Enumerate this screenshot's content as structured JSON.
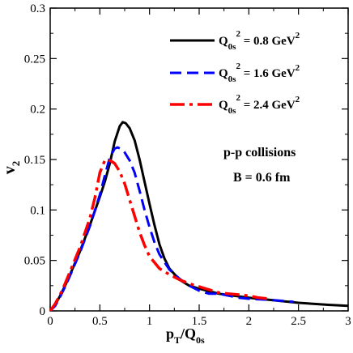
{
  "chart_data": {
    "type": "line",
    "xlim": [
      0,
      3
    ],
    "ylim": [
      0,
      0.3
    ],
    "x_ticks": [
      0,
      0.5,
      1,
      1.5,
      2,
      2.5,
      3
    ],
    "x_tick_labels": [
      "0",
      "0.5",
      "1",
      "1.5",
      "2",
      "2.5",
      "3"
    ],
    "y_ticks": [
      0,
      0.05,
      0.1,
      0.15,
      0.2,
      0.25,
      0.3
    ],
    "y_tick_labels": [
      "0",
      "0.05",
      "0.1",
      "0.15",
      "0.2",
      "0.25",
      "0.3"
    ],
    "xlabel": {
      "main": "p",
      "sub1": "T",
      "mid": "/Q",
      "sub2": "0s"
    },
    "ylabel": {
      "main": "v",
      "sub": "2"
    },
    "legend_placement": "top-right",
    "annotations": [
      "p-p collisions",
      "B = 0.6 fm"
    ],
    "series": [
      {
        "legend": {
          "q": "Q",
          "sub": "0s",
          "sup": "2",
          "value": " = 0.8 GeV",
          "unit_sup": "2"
        },
        "color": "#000000",
        "dash": "solid",
        "points": [
          [
            0,
            0
          ],
          [
            0.05,
            0.006
          ],
          [
            0.1,
            0.015
          ],
          [
            0.15,
            0.025
          ],
          [
            0.2,
            0.036
          ],
          [
            0.3,
            0.059
          ],
          [
            0.4,
            0.085
          ],
          [
            0.5,
            0.113
          ],
          [
            0.55,
            0.128
          ],
          [
            0.6,
            0.146
          ],
          [
            0.65,
            0.168
          ],
          [
            0.7,
            0.183
          ],
          [
            0.73,
            0.187
          ],
          [
            0.76,
            0.186
          ],
          [
            0.8,
            0.181
          ],
          [
            0.85,
            0.169
          ],
          [
            0.9,
            0.15
          ],
          [
            0.95,
            0.128
          ],
          [
            1.0,
            0.106
          ],
          [
            1.05,
            0.085
          ],
          [
            1.1,
            0.066
          ],
          [
            1.15,
            0.052
          ],
          [
            1.2,
            0.042
          ],
          [
            1.3,
            0.031
          ],
          [
            1.4,
            0.025
          ],
          [
            1.5,
            0.022
          ],
          [
            1.7,
            0.017
          ],
          [
            2.0,
            0.013
          ],
          [
            2.2,
            0.011
          ],
          [
            2.5,
            0.008
          ],
          [
            2.8,
            0.006
          ],
          [
            3.0,
            0.005
          ]
        ]
      },
      {
        "legend": {
          "q": "Q",
          "sub": "0s",
          "sup": "2",
          "value": " = 1.6 GeV",
          "unit_sup": "2"
        },
        "color": "#0000ff",
        "dash": "dashed",
        "points": [
          [
            0,
            0
          ],
          [
            0.05,
            0.005
          ],
          [
            0.1,
            0.014
          ],
          [
            0.15,
            0.024
          ],
          [
            0.2,
            0.035
          ],
          [
            0.3,
            0.058
          ],
          [
            0.4,
            0.084
          ],
          [
            0.5,
            0.115
          ],
          [
            0.55,
            0.134
          ],
          [
            0.6,
            0.152
          ],
          [
            0.65,
            0.161
          ],
          [
            0.68,
            0.162
          ],
          [
            0.72,
            0.16
          ],
          [
            0.75,
            0.157
          ],
          [
            0.8,
            0.149
          ],
          [
            0.85,
            0.137
          ],
          [
            0.9,
            0.119
          ],
          [
            0.95,
            0.1
          ],
          [
            1.0,
            0.083
          ],
          [
            1.05,
            0.068
          ],
          [
            1.1,
            0.056
          ],
          [
            1.2,
            0.041
          ],
          [
            1.3,
            0.032
          ],
          [
            1.4,
            0.025
          ],
          [
            1.5,
            0.02
          ],
          [
            1.6,
            0.017
          ],
          [
            1.7,
            0.017
          ],
          [
            1.8,
            0.015
          ],
          [
            1.9,
            0.013
          ],
          [
            2.0,
            0.012
          ],
          [
            2.2,
            0.011
          ],
          [
            2.45,
            0.009
          ]
        ]
      },
      {
        "legend": {
          "q": "Q",
          "sub": "0s",
          "sup": "2",
          "value": " = 2.4 GeV",
          "unit_sup": "2"
        },
        "color": "#ff0000",
        "dash": "dashdot",
        "points": [
          [
            0,
            0
          ],
          [
            0.05,
            0.007
          ],
          [
            0.1,
            0.016
          ],
          [
            0.15,
            0.027
          ],
          [
            0.2,
            0.039
          ],
          [
            0.3,
            0.063
          ],
          [
            0.4,
            0.092
          ],
          [
            0.45,
            0.112
          ],
          [
            0.5,
            0.137
          ],
          [
            0.55,
            0.149
          ],
          [
            0.58,
            0.15
          ],
          [
            0.62,
            0.148
          ],
          [
            0.65,
            0.146
          ],
          [
            0.7,
            0.138
          ],
          [
            0.75,
            0.126
          ],
          [
            0.8,
            0.11
          ],
          [
            0.85,
            0.094
          ],
          [
            0.9,
            0.078
          ],
          [
            0.95,
            0.065
          ],
          [
            1.0,
            0.054
          ],
          [
            1.1,
            0.042
          ],
          [
            1.2,
            0.036
          ],
          [
            1.3,
            0.031
          ],
          [
            1.4,
            0.027
          ],
          [
            1.5,
            0.024
          ],
          [
            1.6,
            0.021
          ],
          [
            1.7,
            0.018
          ],
          [
            1.8,
            0.017
          ],
          [
            1.9,
            0.016
          ],
          [
            2.0,
            0.015
          ],
          [
            2.1,
            0.013
          ],
          [
            2.2,
            0.012
          ]
        ]
      }
    ]
  }
}
